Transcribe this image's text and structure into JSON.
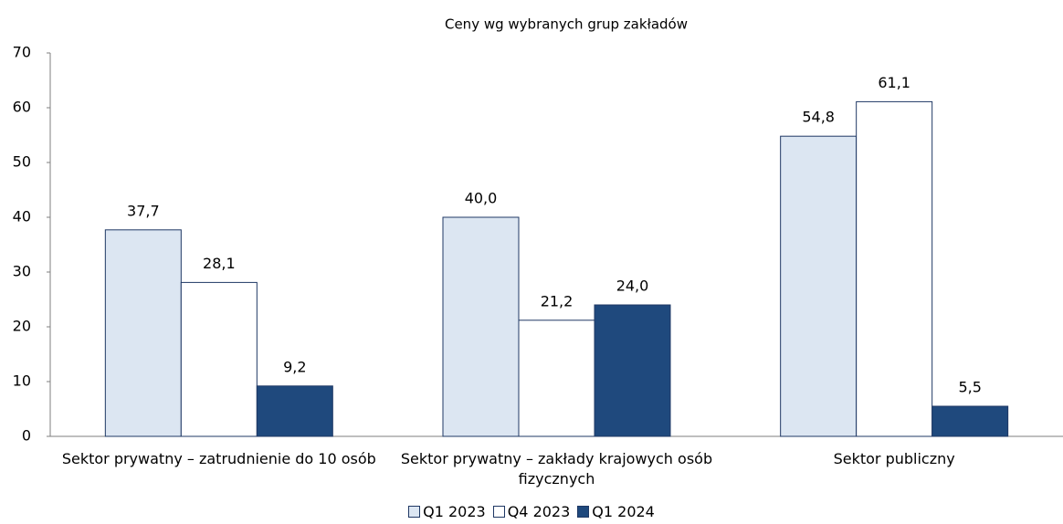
{
  "chart_data": {
    "type": "bar",
    "title": "Ceny wg wybranych grup zakładów",
    "categories": [
      "Sektor prywatny – zatrudnienie do 10 osób",
      "Sektor prywatny – zakłady krajowych osób fizycznych",
      "Sektor publiczny"
    ],
    "series": [
      {
        "name": "Q1 2023",
        "color": "#dce6f2",
        "values": [
          37.7,
          40.0,
          54.8
        ],
        "value_labels": [
          "37,7",
          "40,0",
          "54,8"
        ]
      },
      {
        "name": "Q4 2023",
        "color": "#ffffff",
        "values": [
          28.1,
          21.2,
          61.1
        ],
        "value_labels": [
          "28,1",
          "21,2",
          "61,1"
        ]
      },
      {
        "name": "Q1 2024",
        "color": "#1f497d",
        "values": [
          9.2,
          24.0,
          5.5
        ],
        "value_labels": [
          "9,2",
          "24,0",
          "5,5"
        ]
      }
    ],
    "ylim": [
      0,
      70
    ],
    "yticks": [
      0,
      10,
      20,
      30,
      40,
      50,
      60,
      70
    ],
    "legend": "bottom"
  }
}
